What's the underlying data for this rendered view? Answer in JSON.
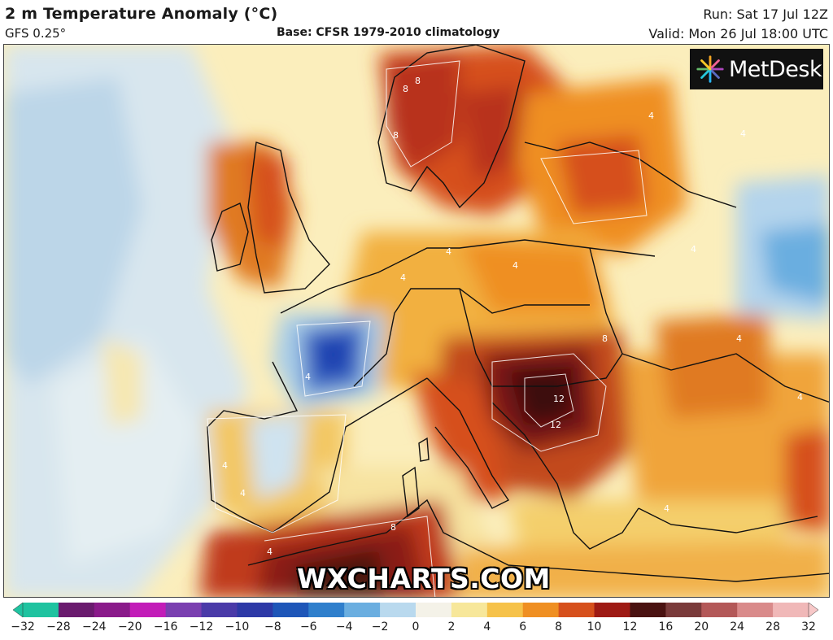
{
  "header": {
    "title": "2 m Temperature Anomaly (°C)",
    "model": "GFS 0.25°",
    "base": "Base: CFSR 1979-2010 climatology",
    "run": "Run: Sat 17 Jul 12Z",
    "valid": "Valid: Mon 26 Jul 18:00 UTC"
  },
  "logo": {
    "text": "MetDesk",
    "icon": "metdesk-starburst-icon"
  },
  "watermark": "WXCHARTS.COM",
  "colorbar": {
    "labels": [
      "−32",
      "−28",
      "−24",
      "−20",
      "−16",
      "−12",
      "−10",
      "−8",
      "−6",
      "−4",
      "−2",
      "0",
      "2",
      "4",
      "6",
      "8",
      "10",
      "12",
      "16",
      "20",
      "24",
      "28",
      "32"
    ],
    "colors": [
      "#1fc3a0",
      "#6a1b6e",
      "#8a1a8a",
      "#c21cb8",
      "#7a3fb0",
      "#4a3aa8",
      "#2d39a6",
      "#1e56b8",
      "#2f7fcc",
      "#6aaee0",
      "#b9d9ee",
      "#f4f2e8",
      "#f7e79a",
      "#f6c24a",
      "#ef8f22",
      "#d6501c",
      "#9e1a14",
      "#4a1211",
      "#7a3a3a",
      "#b35858",
      "#d98a8a",
      "#f0b8b8"
    ]
  },
  "map": {
    "contour_labels": [
      "8",
      "8",
      "8",
      "4",
      "4",
      "4",
      "4",
      "4",
      "4",
      "4",
      "12",
      "12",
      "4",
      "8",
      "4",
      "8",
      "4",
      "4",
      "4",
      "4"
    ]
  }
}
